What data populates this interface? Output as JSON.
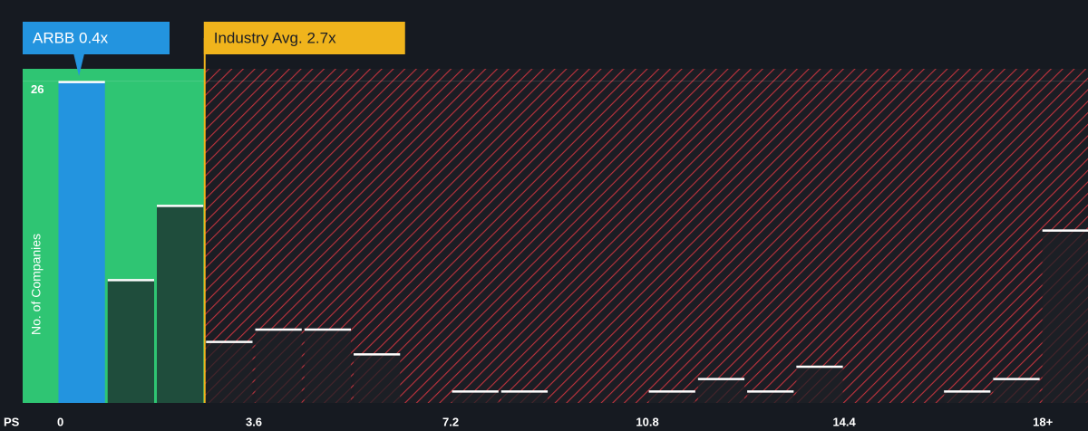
{
  "chart_data": {
    "type": "histogram",
    "x_label": "PS",
    "y_label": "No. of Companies",
    "bins": [
      0,
      0.9,
      1.8,
      2.7,
      3.6,
      4.5,
      5.4,
      6.3,
      7.2,
      8.1,
      9.0,
      9.9,
      10.8,
      11.7,
      12.6,
      13.5,
      14.4,
      15.3,
      16.2,
      17.1,
      18.0,
      18.9
    ],
    "values": [
      26,
      10,
      16,
      5,
      6,
      6,
      4,
      0,
      1,
      1,
      0,
      0,
      1,
      2,
      1,
      3,
      0,
      0,
      1,
      2,
      14
    ],
    "xlim": [
      -0.63,
      18.86
    ],
    "ylim": [
      0,
      27
    ],
    "xticks": [
      0,
      3.6,
      7.2,
      10.8,
      14.4,
      {
        "value": 18,
        "label": "18+"
      }
    ],
    "yticks": [
      26
    ],
    "markers": [
      {
        "label": "ARBB 0.4x",
        "value": 0.4,
        "color": "#2394df"
      },
      {
        "label": "Industry Avg. 2.7x",
        "value": 2.7,
        "color": "#f0b41c"
      }
    ]
  }
}
